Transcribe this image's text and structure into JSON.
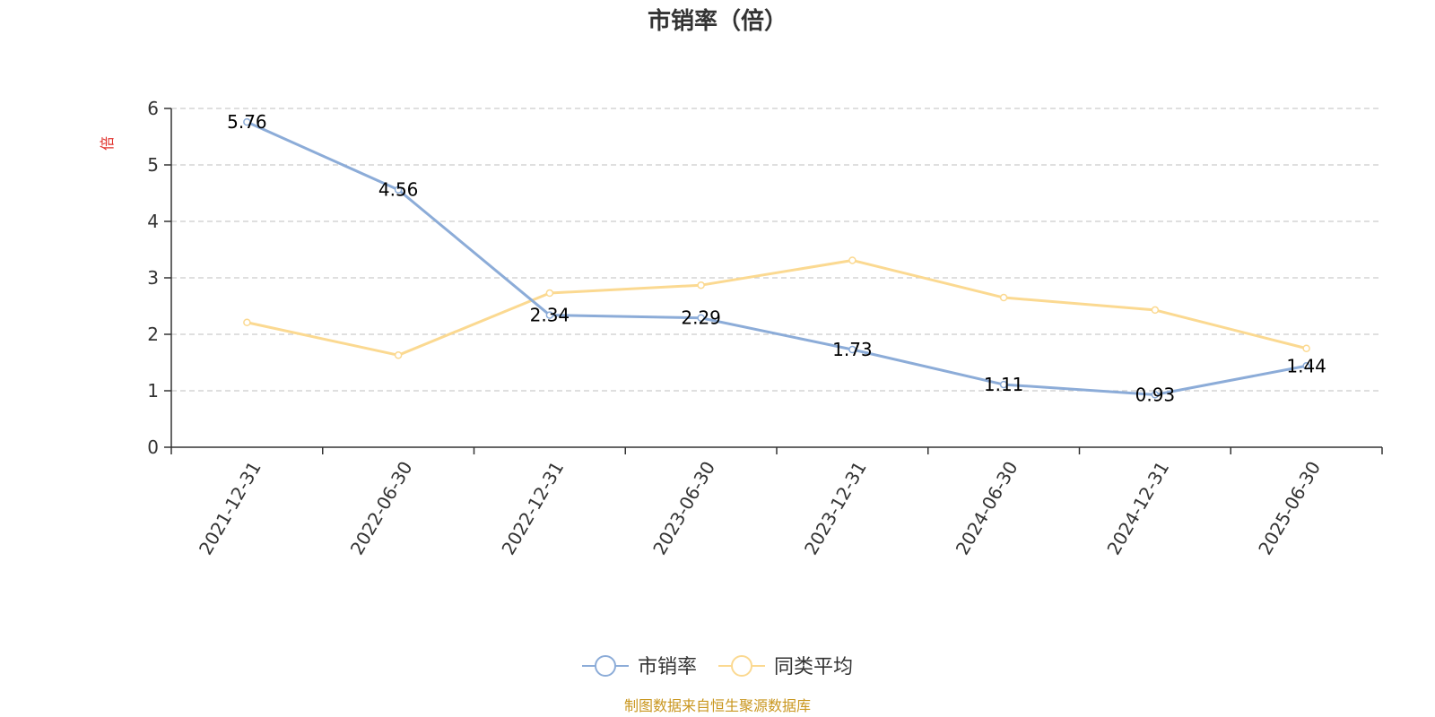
{
  "chart_data": {
    "type": "line",
    "title": "市销率（倍）",
    "xlabel": "",
    "ylabel": "倍",
    "ylim": [
      0,
      6
    ],
    "yticks": [
      0,
      1,
      2,
      3,
      4,
      5,
      6
    ],
    "grid": true,
    "legend_position": "bottom-center",
    "categories": [
      "2021-12-31",
      "2022-06-30",
      "2022-12-31",
      "2023-06-30",
      "2023-12-31",
      "2024-06-30",
      "2024-12-31",
      "2025-06-30"
    ],
    "series": [
      {
        "name": "市销率",
        "color": "#8cacd8",
        "values": [
          5.76,
          4.56,
          2.34,
          2.29,
          1.73,
          1.11,
          0.93,
          1.44
        ],
        "labels": [
          "5.76",
          "4.56",
          "2.34",
          "2.29",
          "1.73",
          "1.11",
          "0.93",
          "1.44"
        ]
      },
      {
        "name": "同类平均",
        "color": "#fbd991",
        "values": [
          2.21,
          1.63,
          2.73,
          2.87,
          3.31,
          2.65,
          2.43,
          1.75
        ]
      }
    ]
  },
  "source": {
    "text": "制图数据来自恒生聚源数据库",
    "color": "#c9961e"
  }
}
